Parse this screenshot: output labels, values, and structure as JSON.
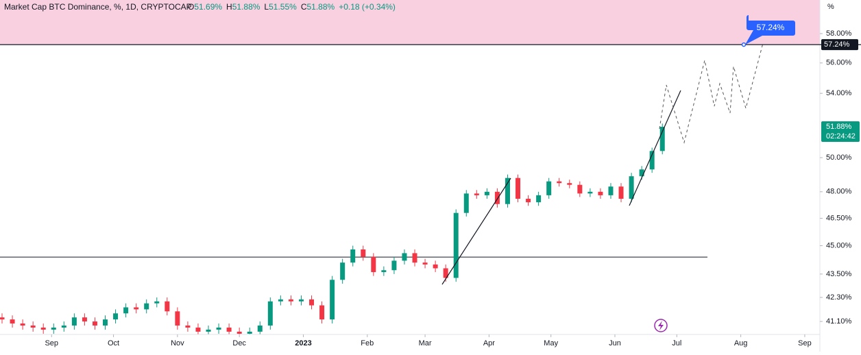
{
  "chart_data": {
    "type": "candlestick",
    "title": "Market Cap BTC Dominance, %, 1D, CRYPTOCAP",
    "ohlc_legend": [
      {
        "key": "O",
        "value": "51.69%"
      },
      {
        "key": "H",
        "value": "51.88%"
      },
      {
        "key": "L",
        "value": "51.55%"
      },
      {
        "key": "C",
        "value": "51.88%"
      }
    ],
    "change": "+0.18 (+0.34%)",
    "y_unit": "%",
    "log_scale": true,
    "grid": false,
    "up_color": "#089981",
    "down_color": "#f23645",
    "x": [
      -24,
      -19,
      -14,
      -9,
      -4,
      1,
      6,
      11,
      16,
      21,
      26,
      31,
      36,
      41,
      46,
      51,
      56,
      61,
      66,
      71,
      76,
      81,
      86,
      91,
      96,
      101,
      106,
      111,
      116,
      121,
      126,
      131,
      136,
      141,
      146,
      151,
      156,
      161,
      166,
      171,
      176,
      181,
      186,
      191,
      196,
      201,
      206,
      211,
      216,
      221,
      226,
      231,
      236,
      241,
      246,
      251,
      256,
      261,
      266,
      271,
      276,
      281,
      286,
      291,
      296
    ],
    "open": [
      41.3,
      41.2,
      41.0,
      40.9,
      40.8,
      40.7,
      40.8,
      40.9,
      41.3,
      41.1,
      40.9,
      41.2,
      41.5,
      41.8,
      41.7,
      42.0,
      42.1,
      41.6,
      40.9,
      40.8,
      40.6,
      40.7,
      40.8,
      40.6,
      40.5,
      40.6,
      40.9,
      42.1,
      42.2,
      42.1,
      42.2,
      41.9,
      41.2,
      43.2,
      44.1,
      44.8,
      44.4,
      43.6,
      43.7,
      44.2,
      44.6,
      44.1,
      44.0,
      43.8,
      43.3,
      46.8,
      47.9,
      47.8,
      48.0,
      47.3,
      48.8,
      47.6,
      47.4,
      47.8,
      48.6,
      48.5,
      48.4,
      47.9,
      48.0,
      47.8,
      48.3,
      47.6,
      48.9,
      49.3,
      50.4
    ],
    "high": [
      41.5,
      41.4,
      41.2,
      41.1,
      41.0,
      41.0,
      41.1,
      41.5,
      41.5,
      41.3,
      41.4,
      41.7,
      42.0,
      42.0,
      42.2,
      42.3,
      42.3,
      41.8,
      41.1,
      41.0,
      40.9,
      41.0,
      41.0,
      40.8,
      40.8,
      41.1,
      42.3,
      42.4,
      42.4,
      42.4,
      42.4,
      42.1,
      43.4,
      44.3,
      45.0,
      45.0,
      44.6,
      43.9,
      44.4,
      44.8,
      44.8,
      44.3,
      44.2,
      44.0,
      47.0,
      48.1,
      48.1,
      48.2,
      48.2,
      49.0,
      49.0,
      47.8,
      48.0,
      48.8,
      48.8,
      48.7,
      48.6,
      48.2,
      48.2,
      48.5,
      48.5,
      49.1,
      49.5,
      50.6,
      52.08
    ],
    "low": [
      41.0,
      40.8,
      40.7,
      40.6,
      40.5,
      40.5,
      40.6,
      40.7,
      40.9,
      40.7,
      40.7,
      41.0,
      41.3,
      41.5,
      41.5,
      41.8,
      41.4,
      40.7,
      40.6,
      40.4,
      40.4,
      40.5,
      40.4,
      40.3,
      40.3,
      40.4,
      40.7,
      41.9,
      41.9,
      41.9,
      41.7,
      41.0,
      41.0,
      43.0,
      43.9,
      44.2,
      43.4,
      43.4,
      43.5,
      44.0,
      43.9,
      43.8,
      43.6,
      43.1,
      43.1,
      46.6,
      47.6,
      47.6,
      47.1,
      47.1,
      47.4,
      47.2,
      47.2,
      47.6,
      48.3,
      48.2,
      47.7,
      47.7,
      47.6,
      47.6,
      47.4,
      47.4,
      48.7,
      49.1,
      50.2
    ],
    "close": [
      41.2,
      41.0,
      40.9,
      40.8,
      40.7,
      40.8,
      40.9,
      41.3,
      41.1,
      40.9,
      41.2,
      41.5,
      41.8,
      41.7,
      42.0,
      42.1,
      41.6,
      40.9,
      40.8,
      40.6,
      40.7,
      40.8,
      40.6,
      40.5,
      40.6,
      40.9,
      42.1,
      42.2,
      42.1,
      42.2,
      41.9,
      41.2,
      43.2,
      44.1,
      44.8,
      44.4,
      43.6,
      43.7,
      44.2,
      44.6,
      44.1,
      44.0,
      43.8,
      43.3,
      46.8,
      47.9,
      47.8,
      48.0,
      47.3,
      48.8,
      47.6,
      47.4,
      47.8,
      48.6,
      48.5,
      48.4,
      47.9,
      48.0,
      47.8,
      48.3,
      47.6,
      48.9,
      49.3,
      50.4,
      51.88
    ],
    "xlim": [
      -25,
      372
    ],
    "xticks": [
      {
        "value": 0,
        "label": "Sep"
      },
      {
        "value": 30,
        "label": "Oct"
      },
      {
        "value": 61,
        "label": "Nov"
      },
      {
        "value": 91,
        "label": "Dec"
      },
      {
        "value": 122,
        "label": "2023"
      },
      {
        "value": 153,
        "label": "Feb"
      },
      {
        "value": 181,
        "label": "Mar"
      },
      {
        "value": 212,
        "label": "Apr"
      },
      {
        "value": 242,
        "label": "May"
      },
      {
        "value": 273,
        "label": "Jun"
      },
      {
        "value": 303,
        "label": "Jul"
      },
      {
        "value": 334,
        "label": "Aug"
      },
      {
        "value": 365,
        "label": "Sep"
      }
    ],
    "ylim": [
      40.5,
      60.38
    ],
    "yticks": [
      {
        "value": 58,
        "label": "58.00%"
      },
      {
        "value": 56,
        "label": "56.00%"
      },
      {
        "value": 54,
        "label": "54.00%"
      },
      {
        "value": 50,
        "label": "50.00%"
      },
      {
        "value": 48,
        "label": "48.00%"
      },
      {
        "value": 46.5,
        "label": "46.50%"
      },
      {
        "value": 45,
        "label": "45.00%"
      },
      {
        "value": 43.5,
        "label": "43.50%"
      },
      {
        "value": 42.3,
        "label": "42.30%"
      },
      {
        "value": 41.1,
        "label": "41.10%"
      }
    ],
    "target": {
      "value": 57.24,
      "label": "57.24%"
    },
    "support": {
      "value": 44.39
    },
    "last": {
      "value": 51.88,
      "label": "51.88%",
      "countdown": "02:24:42"
    }
  }
}
